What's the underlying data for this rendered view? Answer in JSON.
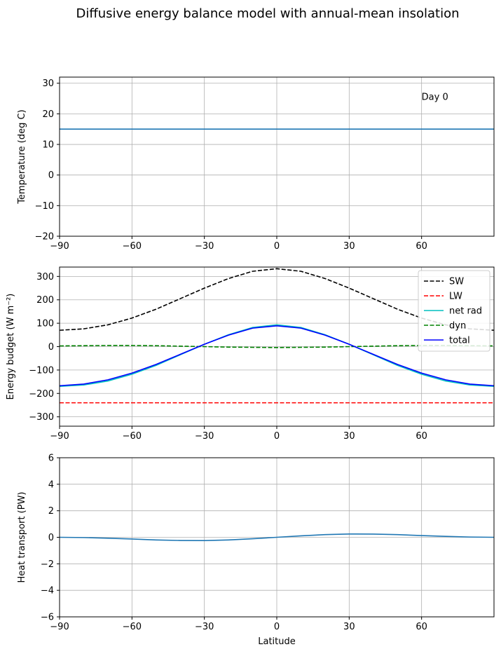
{
  "figure": {
    "suptitle": "Diffusive energy balance model with annual-mean insolation"
  },
  "chart_data": [
    {
      "type": "line",
      "ylabel": "Temperature (deg C)",
      "xlabel": "",
      "xlim": [
        -90,
        90
      ],
      "ylim": [
        -20,
        32
      ],
      "xticks": [
        -90,
        -60,
        -30,
        0,
        30,
        60
      ],
      "yticks": [
        -20,
        -10,
        0,
        10,
        20,
        30
      ],
      "grid": true,
      "annotation": "Day 0",
      "series": [
        {
          "color": "#1f77b4",
          "style": "solid",
          "x": [
            -90,
            -60,
            -30,
            0,
            30,
            60,
            90
          ],
          "y": [
            15,
            15,
            15,
            15,
            15,
            15,
            15
          ]
        }
      ]
    },
    {
      "type": "line",
      "ylabel": "Energy budget (W m⁻²)",
      "xlabel": "",
      "xlim": [
        -90,
        90
      ],
      "ylim": [
        -340,
        340
      ],
      "xticks": [
        -90,
        -60,
        -30,
        0,
        30,
        60
      ],
      "yticks": [
        -300,
        -200,
        -100,
        0,
        100,
        200,
        300
      ],
      "grid": true,
      "legend": "top-right",
      "series": [
        {
          "name": "SW",
          "color": "#000000",
          "style": "dashed",
          "x": [
            -90,
            -80,
            -70,
            -60,
            -50,
            -40,
            -30,
            -20,
            -10,
            0,
            10,
            20,
            30,
            40,
            50,
            60,
            70,
            80,
            90
          ],
          "y": [
            70,
            76,
            93,
            122,
            160,
            205,
            250,
            291,
            322,
            333,
            322,
            291,
            250,
            205,
            160,
            122,
            93,
            76,
            70
          ]
        },
        {
          "name": "LW",
          "color": "#ff0000",
          "style": "dashed",
          "x": [
            -90,
            90
          ],
          "y": [
            -240,
            -240
          ]
        },
        {
          "name": "net rad",
          "color": "#00bfbf",
          "style": "solid",
          "x": [
            -90,
            -80,
            -70,
            -60,
            -50,
            -40,
            -30,
            -20,
            -10,
            0,
            10,
            20,
            30,
            40,
            50,
            60,
            70,
            80,
            90
          ],
          "y": [
            -170,
            -164,
            -147,
            -118,
            -80,
            -35,
            10,
            51,
            82,
            93,
            82,
            51,
            10,
            -35,
            -80,
            -118,
            -147,
            -164,
            -170
          ]
        },
        {
          "name": "dyn",
          "color": "#008000",
          "style": "dashed",
          "x": [
            -90,
            -80,
            -70,
            -60,
            -50,
            -40,
            -30,
            -20,
            -10,
            0,
            10,
            20,
            30,
            40,
            50,
            60,
            70,
            80,
            90
          ],
          "y": [
            3,
            4,
            5,
            5,
            4,
            2,
            0,
            -2,
            -3,
            -4,
            -3,
            -2,
            0,
            2,
            4,
            5,
            5,
            4,
            3
          ]
        },
        {
          "name": "total",
          "color": "#0000ff",
          "style": "solid",
          "x": [
            -90,
            -80,
            -70,
            -60,
            -50,
            -40,
            -30,
            -20,
            -10,
            0,
            10,
            20,
            30,
            40,
            50,
            60,
            70,
            80,
            90
          ],
          "y": [
            -167,
            -160,
            -142,
            -113,
            -76,
            -33,
            10,
            49,
            79,
            89,
            79,
            49,
            10,
            -33,
            -76,
            -113,
            -142,
            -160,
            -167
          ]
        }
      ]
    },
    {
      "type": "line",
      "ylabel": "Heat transport (PW)",
      "xlabel": "Latitude",
      "xlim": [
        -90,
        90
      ],
      "ylim": [
        -6,
        6
      ],
      "xticks": [
        -90,
        -60,
        -30,
        0,
        30,
        60
      ],
      "yticks": [
        -6,
        -4,
        -2,
        0,
        2,
        4,
        6
      ],
      "grid": true,
      "series": [
        {
          "color": "#1f77b4",
          "style": "solid",
          "x": [
            -90,
            -80,
            -70,
            -60,
            -50,
            -40,
            -30,
            -20,
            -10,
            0,
            10,
            20,
            30,
            40,
            50,
            60,
            70,
            80,
            90
          ],
          "y": [
            0,
            -0.02,
            -0.07,
            -0.13,
            -0.2,
            -0.24,
            -0.25,
            -0.2,
            -0.11,
            0,
            0.11,
            0.2,
            0.25,
            0.24,
            0.2,
            0.13,
            0.07,
            0.02,
            0
          ]
        }
      ]
    }
  ]
}
